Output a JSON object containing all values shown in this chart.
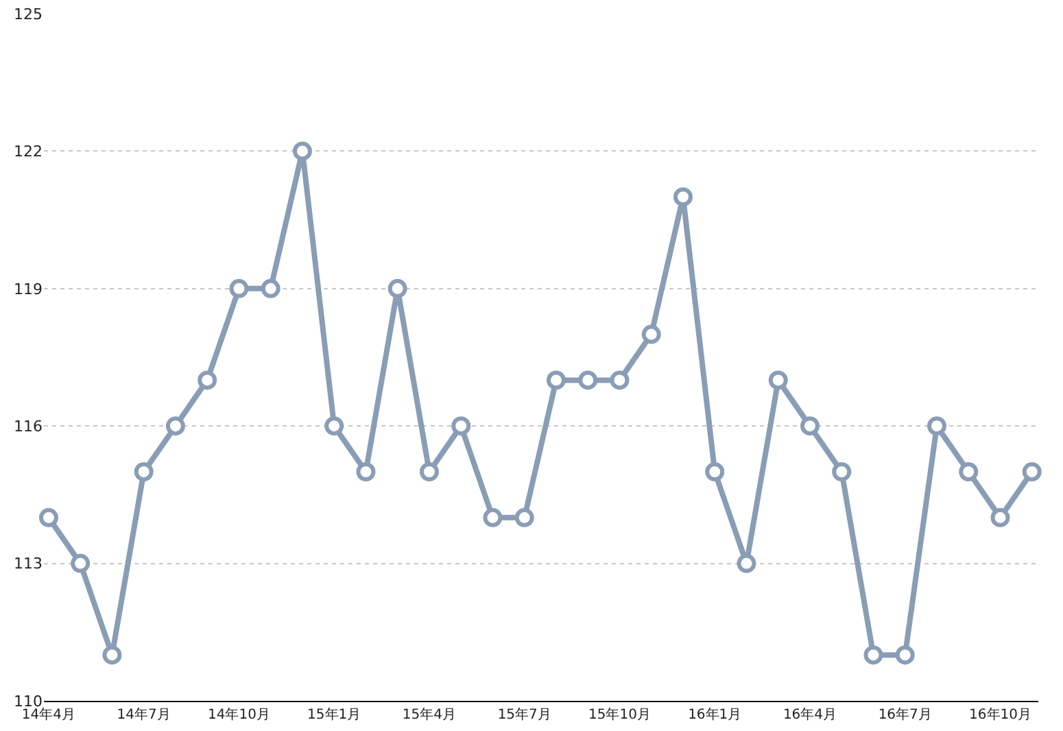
{
  "chart_data": {
    "type": "line",
    "categories": [
      "14年4月",
      null,
      null,
      "14年7月",
      null,
      null,
      "14年10月",
      null,
      null,
      "15年1月",
      null,
      null,
      "15年4月",
      null,
      null,
      "15年7月",
      null,
      null,
      "15年10月",
      null,
      null,
      "16年1月",
      null,
      null,
      "16年4月",
      null,
      null,
      "16年7月",
      null,
      null,
      "16年10月",
      null
    ],
    "series": [
      {
        "color": "#8a9db6",
        "values": [
          114,
          113,
          111,
          115,
          116,
          117,
          119,
          119,
          122,
          116,
          115,
          119,
          115,
          116,
          114,
          114,
          117,
          117,
          117,
          118,
          121,
          115,
          113,
          117,
          116,
          115,
          111,
          111,
          116,
          115,
          114,
          115
        ]
      }
    ],
    "ylim": [
      110,
      125
    ],
    "yticks": [
      110,
      113,
      116,
      119,
      122,
      125
    ],
    "grid": "y",
    "marker": "circle",
    "line_style": "solid"
  }
}
